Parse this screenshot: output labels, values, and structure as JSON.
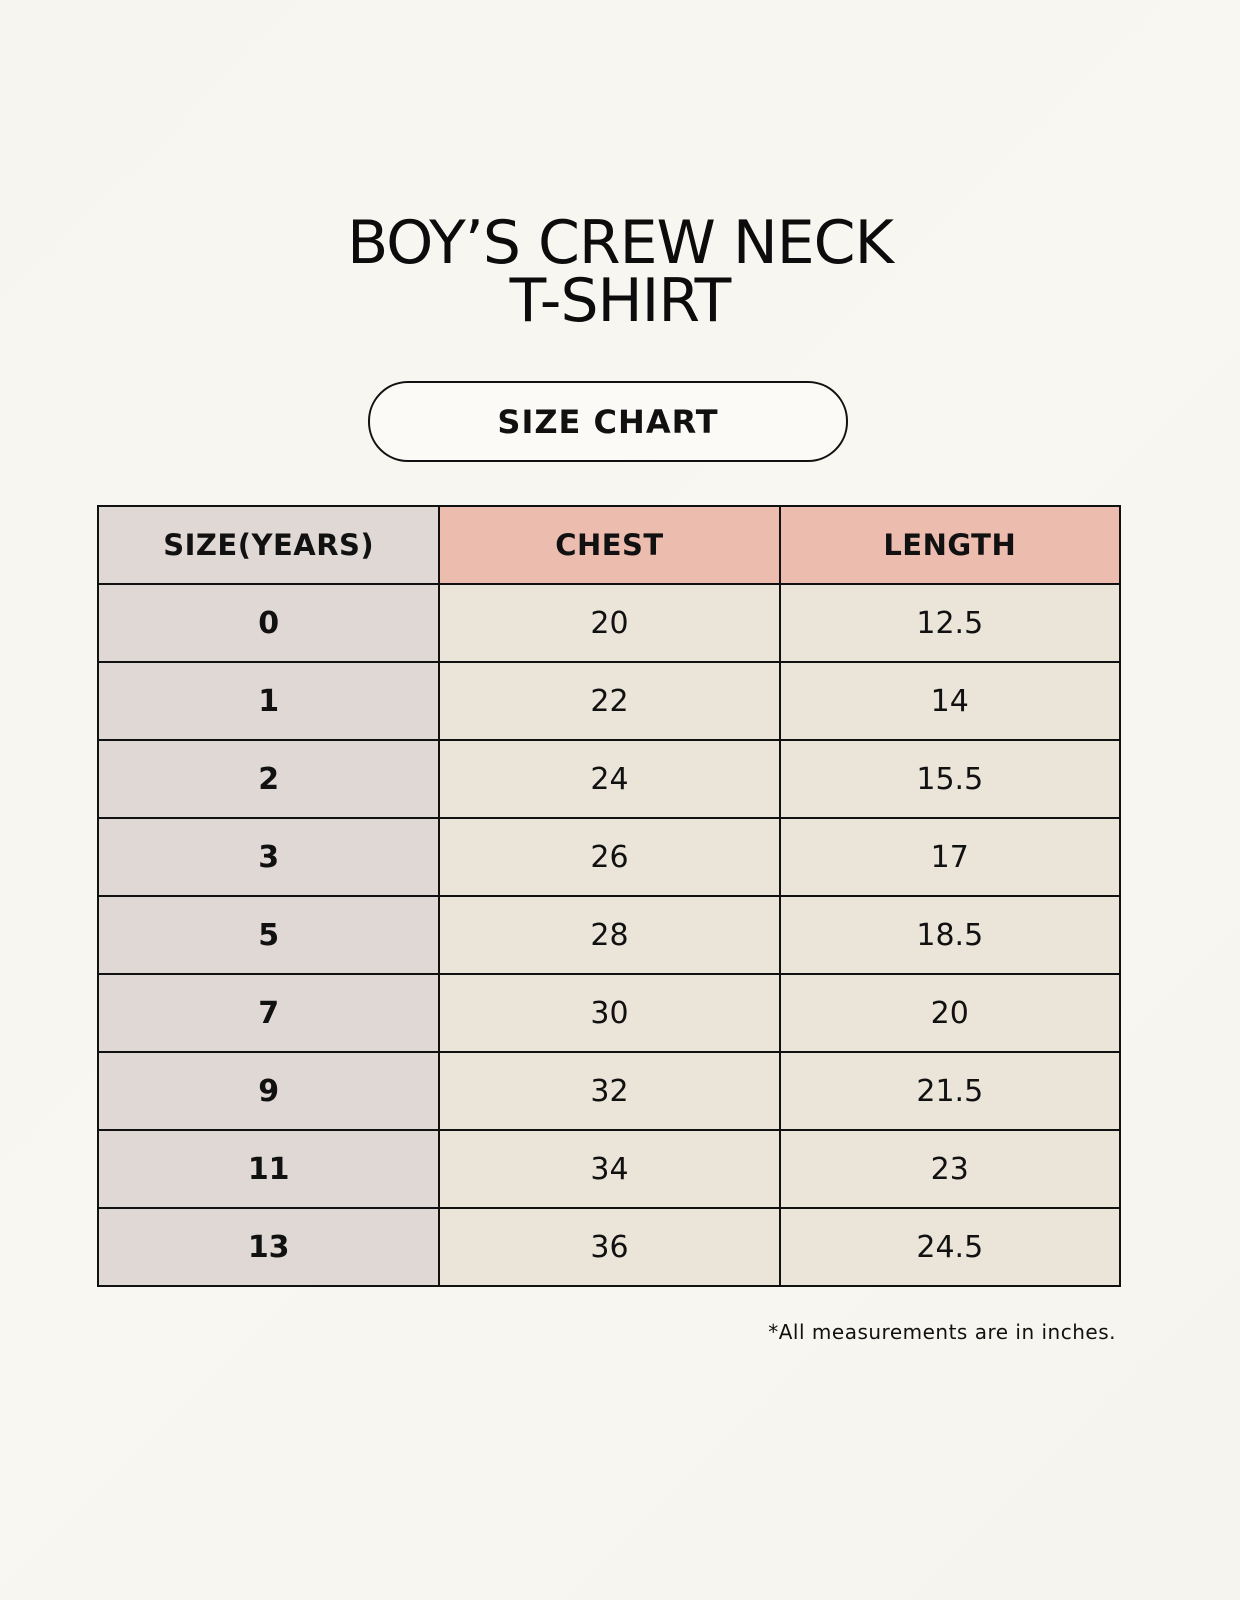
{
  "title_line1": "BOY’S CREW NECK",
  "title_line2": "T-SHIRT",
  "badge": "SIZE CHART",
  "colors": {
    "size_column": "#e0d8d5",
    "header_accent": "#ecbcaf",
    "cell": "#ebe5d9"
  },
  "table": {
    "headers": [
      "SIZE(YEARS)",
      "CHEST",
      "LENGTH"
    ],
    "rows": [
      [
        "0",
        "20",
        "12.5"
      ],
      [
        "1",
        "22",
        "14"
      ],
      [
        "2",
        "24",
        "15.5"
      ],
      [
        "3",
        "26",
        "17"
      ],
      [
        "5",
        "28",
        "18.5"
      ],
      [
        "7",
        "30",
        "20"
      ],
      [
        "9",
        "32",
        "21.5"
      ],
      [
        "11",
        "34",
        "23"
      ],
      [
        "13",
        "36",
        "24.5"
      ]
    ]
  },
  "footnote": "*All measurements are in inches."
}
